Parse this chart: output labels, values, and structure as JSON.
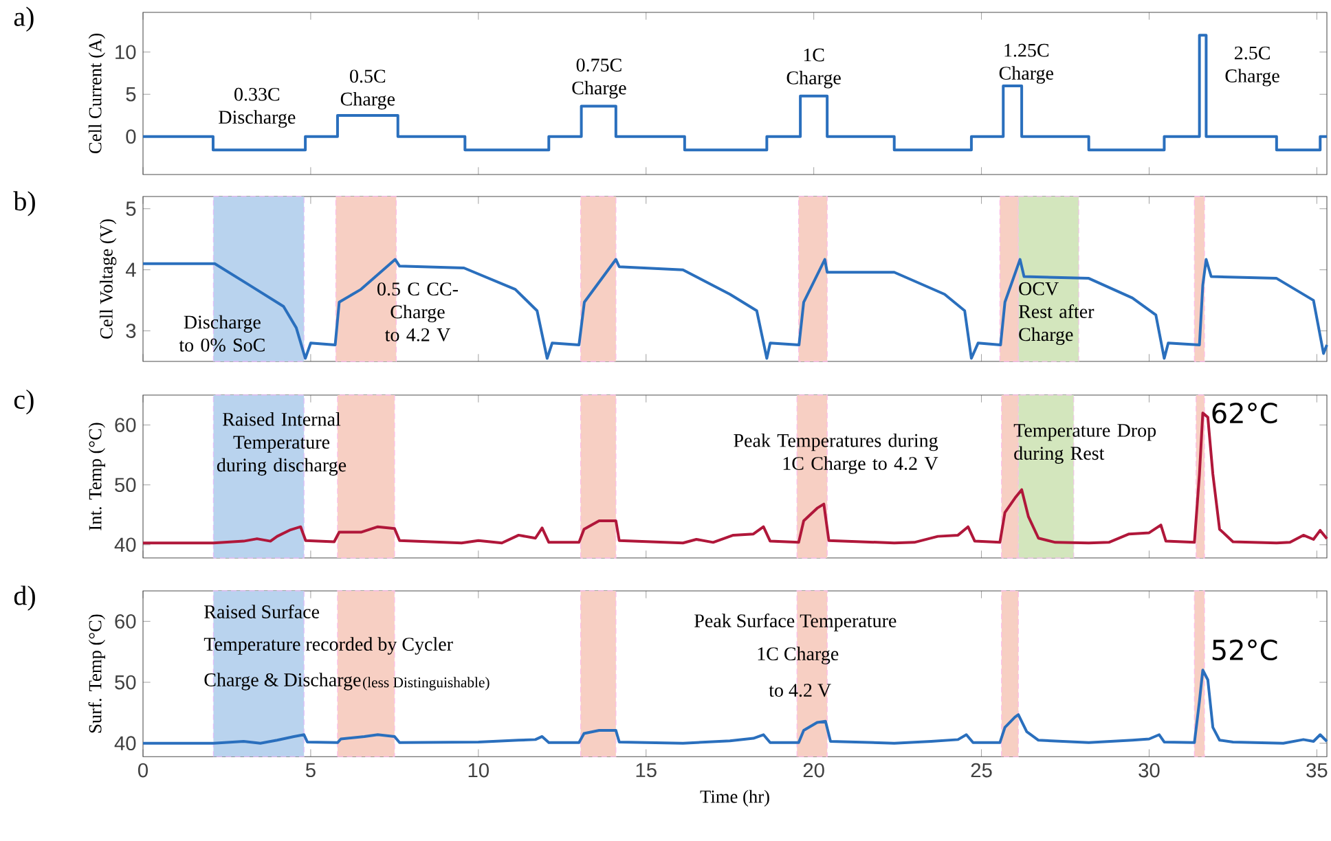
{
  "chart_data": [
    {
      "type": "step",
      "title": "a)",
      "ylabel": "Cell Current (A)",
      "color": "#2a6fbd",
      "xlim": [
        0,
        35.3
      ],
      "ylim": [
        -4.5,
        14.7
      ],
      "xticks": [
        0,
        5,
        10,
        15,
        20,
        25,
        30,
        35
      ],
      "yticks": [
        0,
        5,
        10
      ],
      "tick_labels": "y",
      "x": [
        0,
        2.09,
        4.84,
        5.8,
        7.6,
        9.6,
        12.1,
        13.07,
        14.1,
        16.15,
        18.6,
        19.6,
        20.4,
        22.4,
        24.7,
        25.65,
        26.2,
        28.2,
        30.45,
        31.5,
        31.7,
        33.8,
        35.1,
        35.3
      ],
      "values": [
        0,
        -1.6,
        0,
        2.5,
        0,
        -1.6,
        0,
        3.6,
        0,
        -1.6,
        0,
        4.8,
        0,
        -1.6,
        0,
        6,
        0,
        -1.6,
        0,
        12,
        0,
        -1.6,
        0,
        0
      ],
      "annotations": [
        {
          "text": "0.33C Discharge",
          "x": 3.4,
          "y": -1.6
        },
        {
          "text": "0.5C Charge",
          "x": 6.7,
          "y": 2.5
        },
        {
          "text": "0.75C Charge",
          "x": 13.6,
          "y": 3.6
        },
        {
          "text": "1C Charge",
          "x": 20.0,
          "y": 4.8
        },
        {
          "text": "1.25C Charge",
          "x": 25.9,
          "y": 6
        },
        {
          "text": "2.5C Charge",
          "x": 31.7,
          "y": 12
        }
      ]
    },
    {
      "type": "line",
      "title": "b)",
      "ylabel": "Cell Voltage (V)",
      "color": "#2a6fbd",
      "xlim": [
        0,
        35.3
      ],
      "ylim": [
        2.5,
        5.2
      ],
      "xticks": [
        0,
        5,
        10,
        15,
        20,
        25,
        30,
        35
      ],
      "yticks": [
        3,
        4,
        5
      ],
      "tick_labels": "y",
      "x": [
        0,
        2.14,
        3.17,
        4.19,
        4.57,
        4.84,
        5.0,
        5.73,
        5.85,
        6.5,
        7.52,
        7.65,
        9.57,
        11.1,
        11.75,
        12.05,
        12.2,
        13.0,
        13.16,
        14.1,
        14.2,
        16.1,
        17.5,
        18.3,
        18.6,
        18.7,
        19.56,
        19.7,
        20.33,
        20.4,
        22.4,
        23.9,
        24.5,
        24.7,
        24.9,
        25.57,
        25.7,
        26.15,
        26.27,
        28.2,
        29.5,
        30.2,
        30.45,
        30.57,
        31.5,
        31.6,
        31.7,
        31.85,
        33.8,
        34.9,
        35.2,
        35.3
      ],
      "values": [
        4.1,
        4.1,
        3.75,
        3.4,
        3.05,
        2.55,
        2.8,
        2.77,
        3.47,
        3.68,
        4.17,
        4.06,
        4.03,
        3.68,
        3.33,
        2.55,
        2.8,
        2.77,
        3.47,
        4.17,
        4.05,
        4.0,
        3.6,
        3.33,
        2.55,
        2.8,
        2.77,
        3.47,
        4.17,
        3.96,
        3.96,
        3.6,
        3.33,
        2.55,
        2.8,
        2.77,
        3.47,
        4.17,
        3.89,
        3.86,
        3.54,
        3.26,
        2.55,
        2.8,
        2.77,
        3.75,
        4.17,
        3.89,
        3.86,
        3.5,
        2.63,
        2.77
      ],
      "bands": [
        {
          "axis": "x",
          "from": 2.1,
          "to": 4.8,
          "color": "#b9d3ee"
        },
        {
          "axis": "x",
          "from": 5.75,
          "to": 7.55,
          "color": "#f7cfc3"
        },
        {
          "axis": "x",
          "from": 13.05,
          "to": 14.1,
          "color": "#f7cfc3"
        },
        {
          "axis": "x",
          "from": 19.55,
          "to": 20.4,
          "color": "#f7cfc3"
        },
        {
          "axis": "x",
          "from": 25.55,
          "to": 26.1,
          "color": "#f7cfc3"
        },
        {
          "axis": "x",
          "from": 26.1,
          "to": 27.9,
          "color": "#d3e6bd"
        },
        {
          "axis": "x",
          "from": 31.35,
          "to": 31.65,
          "color": "#f7cfc3"
        }
      ],
      "annotations": [
        "Discharge to 0% SoC",
        "0.5 C CC-Charge to 4.2 V",
        "OCV Rest after Charge"
      ]
    },
    {
      "type": "line",
      "title": "c)",
      "ylabel": "Int. Temp (°C)",
      "color": "#b0173a",
      "xlim": [
        0,
        35.3
      ],
      "ylim": [
        37.8,
        65
      ],
      "xticks": [
        0,
        5,
        10,
        15,
        20,
        25,
        30,
        35
      ],
      "yticks": [
        40,
        50,
        60
      ],
      "tick_labels": "y",
      "x": [
        0,
        2.1,
        3.0,
        3.4,
        3.8,
        4.0,
        4.4,
        4.7,
        4.85,
        5.7,
        5.85,
        6.5,
        7.0,
        7.5,
        7.65,
        9.5,
        10.0,
        10.7,
        11.2,
        11.7,
        11.9,
        12.1,
        13.0,
        13.15,
        13.6,
        14.1,
        14.2,
        16.1,
        16.5,
        17.0,
        17.6,
        18.2,
        18.5,
        18.7,
        19.55,
        19.7,
        20.1,
        20.3,
        20.45,
        22.4,
        23.0,
        23.7,
        24.3,
        24.6,
        24.8,
        25.55,
        25.7,
        26.0,
        26.2,
        26.4,
        26.7,
        27.2,
        28.2,
        28.8,
        29.4,
        30.0,
        30.35,
        30.5,
        31.35,
        31.5,
        31.6,
        31.75,
        31.9,
        32.1,
        32.5,
        33.8,
        34.2,
        34.6,
        34.9,
        35.1,
        35.3
      ],
      "values": [
        40.3,
        40.3,
        40.6,
        41.0,
        40.6,
        41.4,
        42.5,
        43.0,
        40.7,
        40.5,
        42.1,
        42.1,
        43.0,
        42.7,
        40.7,
        40.3,
        40.7,
        40.3,
        41.6,
        41.1,
        42.8,
        40.4,
        40.4,
        42.6,
        44.0,
        44.0,
        40.7,
        40.3,
        40.9,
        40.4,
        41.6,
        41.8,
        43.0,
        40.6,
        40.4,
        44.0,
        46.1,
        46.8,
        40.7,
        40.3,
        40.4,
        41.4,
        41.6,
        43.0,
        40.6,
        40.4,
        45.4,
        47.8,
        49.2,
        44.7,
        41.1,
        40.4,
        40.3,
        40.4,
        41.8,
        42.0,
        43.3,
        40.6,
        40.4,
        51.8,
        62,
        61.3,
        51.8,
        42.6,
        40.5,
        40.3,
        40.4,
        41.6,
        40.9,
        42.4,
        41.0
      ],
      "bands": [
        {
          "axis": "x",
          "from": 2.1,
          "to": 4.8,
          "color": "#b9d3ee"
        },
        {
          "axis": "x",
          "from": 5.8,
          "to": 7.5,
          "color": "#f7cfc3"
        },
        {
          "axis": "x",
          "from": 13.05,
          "to": 14.1,
          "color": "#f7cfc3"
        },
        {
          "axis": "x",
          "from": 19.5,
          "to": 20.4,
          "color": "#f7cfc3"
        },
        {
          "axis": "x",
          "from": 25.6,
          "to": 26.1,
          "color": "#f7cfc3"
        },
        {
          "axis": "x",
          "from": 26.1,
          "to": 27.75,
          "color": "#d3e6bd"
        },
        {
          "axis": "x",
          "from": 31.4,
          "to": 31.65,
          "color": "#f7cfc3"
        }
      ],
      "annotations": [
        "Raised Internal Temperature during discharge",
        "Peak Temperatures during 1C Charge to 4.2 V",
        "Temperature Drop during Rest",
        {
          "text": "62°C",
          "x": 31.6,
          "y": 62
        }
      ]
    },
    {
      "type": "line",
      "title": "d)",
      "ylabel": "Surf. Temp (°C)",
      "xlabel": "Time (hr)",
      "color": "#2a6fbd",
      "xlim": [
        0,
        35.3
      ],
      "ylim": [
        37.8,
        65
      ],
      "xticks": [
        0,
        5,
        10,
        15,
        20,
        25,
        30,
        35
      ],
      "yticks": [
        40,
        50,
        60
      ],
      "x": [
        0,
        2.1,
        3.0,
        3.5,
        4.0,
        4.5,
        4.8,
        4.9,
        5.8,
        5.9,
        6.6,
        7.0,
        7.5,
        7.65,
        10.0,
        11.2,
        11.7,
        11.9,
        12.1,
        13.0,
        13.15,
        13.6,
        14.1,
        14.2,
        16.1,
        17.5,
        18.2,
        18.5,
        18.7,
        19.55,
        19.7,
        20.1,
        20.35,
        20.5,
        22.4,
        23.5,
        24.3,
        24.55,
        24.75,
        25.55,
        25.7,
        26.0,
        26.1,
        26.35,
        26.7,
        28.2,
        29.5,
        30.0,
        30.3,
        30.45,
        31.35,
        31.5,
        31.6,
        31.75,
        31.9,
        32.1,
        32.5,
        34.0,
        34.6,
        34.9,
        35.1,
        35.3
      ],
      "values": [
        40.0,
        40.0,
        40.3,
        40.0,
        40.5,
        41.1,
        41.4,
        40.2,
        40.1,
        40.7,
        41.1,
        41.4,
        41.1,
        40.1,
        40.2,
        40.5,
        40.6,
        41.1,
        40.1,
        40.1,
        41.6,
        42.1,
        42.1,
        40.2,
        40.0,
        40.4,
        40.8,
        41.4,
        40.1,
        40.1,
        42.1,
        43.4,
        43.6,
        40.3,
        40.0,
        40.3,
        40.6,
        41.4,
        40.1,
        40.1,
        42.6,
        44.3,
        44.7,
        41.9,
        40.5,
        40.1,
        40.5,
        40.7,
        41.4,
        40.2,
        40.1,
        46.9,
        52,
        50.4,
        42.6,
        40.5,
        40.2,
        40.0,
        40.6,
        40.3,
        41.4,
        40.3
      ],
      "bands": [
        {
          "axis": "x",
          "from": 2.1,
          "to": 4.8,
          "color": "#b9d3ee"
        },
        {
          "axis": "x",
          "from": 5.8,
          "to": 7.5,
          "color": "#f7cfc3"
        },
        {
          "axis": "x",
          "from": 13.05,
          "to": 14.1,
          "color": "#f7cfc3"
        },
        {
          "axis": "x",
          "from": 19.5,
          "to": 20.4,
          "color": "#f7cfc3"
        },
        {
          "axis": "x",
          "from": 25.6,
          "to": 26.1,
          "color": "#f7cfc3"
        },
        {
          "axis": "x",
          "from": 31.35,
          "to": 31.65,
          "color": "#f7cfc3"
        }
      ],
      "annotations": [
        "Raised Surface",
        "Temperature recorded by Cycler",
        "Charge & Discharge",
        "(less Distinguishable)",
        "Peak Surface Temperature",
        "1C Charge",
        "to 4.2 V",
        {
          "text": "52°C",
          "x": 31.6,
          "y": 52
        }
      ]
    }
  ]
}
